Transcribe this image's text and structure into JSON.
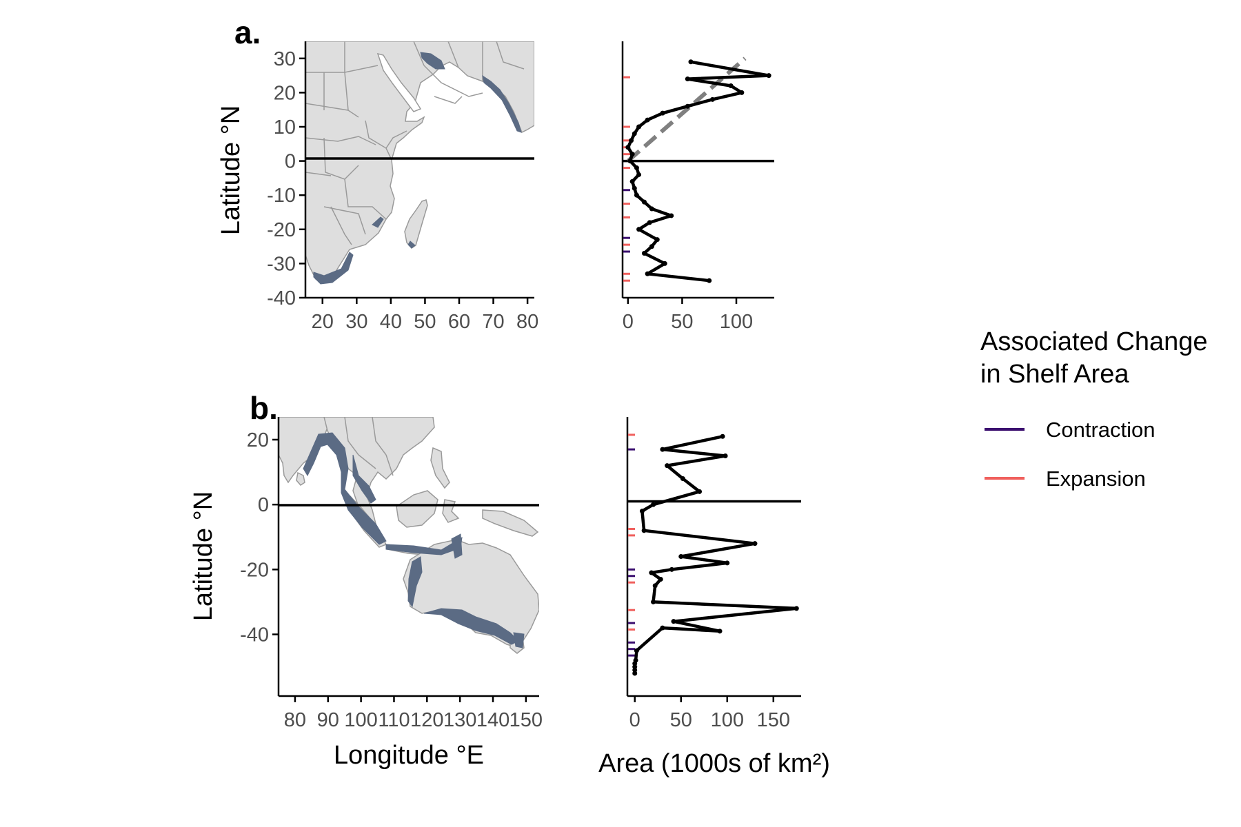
{
  "chart_data": [
    {
      "panel": "a.",
      "type": "map",
      "xlabel": "",
      "ylabel": "Latitude °N",
      "xlim": [
        15,
        82
      ],
      "ylim": [
        -40,
        35
      ],
      "xticks": [
        "20",
        "30",
        "40",
        "50",
        "60",
        "70",
        "80"
      ],
      "yticks": [
        "30",
        "20",
        "10",
        "0",
        "-10",
        "-20",
        "-30",
        "-40"
      ],
      "reference_line_y": 0,
      "land_color": "#dedede",
      "border_color": "#9a9a9a",
      "shelf_color": "#5b6b84"
    },
    {
      "panel": "a.",
      "type": "line",
      "xlabel": "",
      "ylabel": "",
      "xlim": [
        -5,
        135
      ],
      "ylim": [
        -40,
        35
      ],
      "xticks": [
        "0",
        "50",
        "100"
      ],
      "reference_line_y": 0,
      "series": [
        {
          "x": [
            75,
            18,
            34,
            15,
            22,
            27,
            10,
            20,
            40,
            22,
            15,
            8,
            6,
            4,
            10,
            8,
            2,
            4,
            0,
            3,
            6,
            10,
            18,
            32,
            55,
            78,
            105,
            95,
            55,
            130,
            58
          ],
          "y": [
            -35,
            -33,
            -30,
            -27,
            -25,
            -23,
            -20,
            -18,
            -16,
            -14,
            -12,
            -10,
            -8,
            -6,
            -4,
            -2,
            0,
            2,
            4,
            6,
            8,
            10,
            12,
            14,
            16,
            18,
            20,
            22,
            24,
            25,
            29
          ]
        }
      ],
      "trend": {
        "x": [
          0,
          108
        ],
        "y": [
          0,
          30
        ],
        "color": "#808080"
      },
      "contraction_lat": [
        -8.5,
        -22.5,
        -26.5
      ],
      "expansion_lat": [
        24.5,
        10,
        6,
        4,
        2,
        -2,
        -12.5,
        -16.5,
        -24.5,
        -33,
        -35
      ]
    },
    {
      "panel": "b.",
      "type": "map",
      "xlabel": "Longitude °E",
      "ylabel": "Latitude °N",
      "xlim": [
        75,
        154
      ],
      "ylim": [
        -59,
        27
      ],
      "xticks": [
        "80",
        "90",
        "100",
        "110",
        "120",
        "130",
        "140",
        "150"
      ],
      "yticks": [
        "20",
        "0",
        "-20",
        "-40"
      ],
      "reference_line_y": 0,
      "land_color": "#dedede",
      "border_color": "#9a9a9a",
      "shelf_color": "#5b6b84"
    },
    {
      "panel": "b.",
      "type": "line",
      "xlabel": "Area (1000s of km²)",
      "ylabel": "",
      "xlim": [
        -8,
        180
      ],
      "ylim": [
        -59,
        27
      ],
      "xticks": [
        "0",
        "50",
        "100",
        "150"
      ],
      "reference_line_y": 1,
      "series": [
        {
          "x": [
            0,
            0,
            0,
            0,
            1,
            2,
            30,
            92,
            42,
            175,
            20,
            22,
            28,
            18,
            40,
            100,
            50,
            130,
            10,
            8,
            20,
            70,
            52,
            35,
            98,
            30,
            95
          ],
          "y": [
            -52,
            -51,
            -50,
            -49,
            -48,
            -45,
            -38,
            -39,
            -36,
            -32,
            -30,
            -25,
            -23,
            -21,
            -20,
            -18,
            -16,
            -12,
            -8,
            -2,
            0,
            4,
            8,
            12,
            15,
            17,
            21
          ]
        }
      ],
      "contraction_lat": [
        17,
        -20,
        -22,
        -36.5,
        -42.5,
        -44.5,
        -46.5
      ],
      "expansion_lat": [
        21.5,
        -7.5,
        -9.5,
        -24,
        -32.5,
        -38.5
      ]
    }
  ],
  "legend": {
    "title_line1": "Associated Change",
    "title_line2": "in Shelf Area",
    "items": [
      {
        "label": "Contraction",
        "color": "#3b0f6f"
      },
      {
        "label": "Expansion",
        "color": "#f0605d"
      }
    ]
  }
}
